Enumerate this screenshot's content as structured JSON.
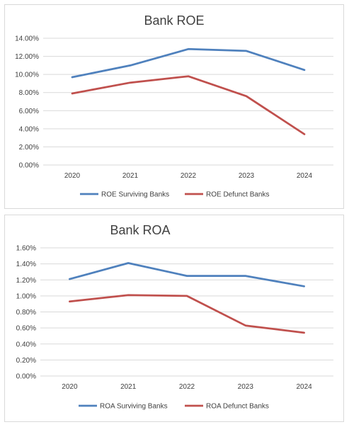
{
  "chart_data": [
    {
      "type": "line",
      "title": "Bank ROE",
      "xlabel": "",
      "ylabel": "",
      "categories": [
        "2020",
        "2021",
        "2022",
        "2023",
        "2024"
      ],
      "ylim": [
        0,
        0.14
      ],
      "yticks": [
        "0.00%",
        "2.00%",
        "4.00%",
        "6.00%",
        "8.00%",
        "10.00%",
        "12.00%",
        "14.00%"
      ],
      "grid": true,
      "legend_position": "bottom",
      "series": [
        {
          "name": "ROE Surviving Banks",
          "color": "#4f81bd",
          "values": [
            0.097,
            0.11,
            0.128,
            0.126,
            0.105
          ]
        },
        {
          "name": "ROE Defunct Banks",
          "color": "#c0504d",
          "values": [
            0.079,
            0.091,
            0.098,
            0.076,
            0.034
          ]
        }
      ]
    },
    {
      "type": "line",
      "title": "Bank ROA",
      "xlabel": "",
      "ylabel": "",
      "categories": [
        "2020",
        "2021",
        "2022",
        "2023",
        "2024"
      ],
      "ylim": [
        0,
        0.016
      ],
      "yticks": [
        "0.00%",
        "0.20%",
        "0.40%",
        "0.60%",
        "0.80%",
        "1.00%",
        "1.20%",
        "1.40%",
        "1.60%"
      ],
      "grid": true,
      "legend_position": "bottom",
      "series": [
        {
          "name": "ROA Surviving Banks",
          "color": "#4f81bd",
          "values": [
            0.0121,
            0.0141,
            0.0125,
            0.0125,
            0.0112
          ]
        },
        {
          "name": "ROA Defunct Banks",
          "color": "#c0504d",
          "values": [
            0.0093,
            0.0101,
            0.01,
            0.0063,
            0.0054
          ]
        }
      ]
    }
  ]
}
